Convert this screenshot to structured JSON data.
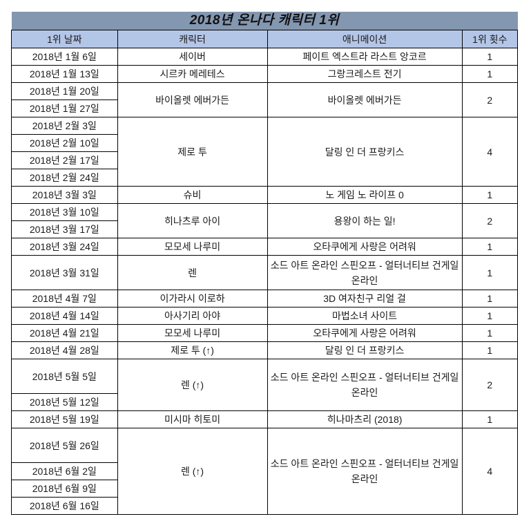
{
  "title": "2018년 온나다 캐릭터 1위",
  "headers": [
    "1위 날짜",
    "캐릭터",
    "애니메이션",
    "1위 횟수"
  ],
  "colors": {
    "title_bg": "#8497B0",
    "header_bg": "#B4C6E7"
  },
  "groups": [
    {
      "dates": [
        "2018년 1월 6일"
      ],
      "character": "세이버",
      "anime": "페이트 엑스트라 라스트 앙코르",
      "count": "1"
    },
    {
      "dates": [
        "2018년 1월 13일"
      ],
      "character": "시르카 메레테스",
      "anime": "그랑크레스트 전기",
      "count": "1"
    },
    {
      "dates": [
        "2018년 1월 20일",
        "2018년 1월 27일"
      ],
      "character": "바이올렛 에버가든",
      "anime": "바이올렛 에버가든",
      "count": "2"
    },
    {
      "dates": [
        "2018년 2월 3일",
        "2018년 2월 10일",
        "2018년 2월 17일",
        "2018년 2월 24일"
      ],
      "character": "제로 투",
      "anime": "달링 인 더 프랑키스",
      "count": "4"
    },
    {
      "dates": [
        "2018년 3월 3일"
      ],
      "character": "슈비",
      "anime": "노 게임 노 라이프 0",
      "count": "1"
    },
    {
      "dates": [
        "2018년 3월 10일",
        "2018년 3월 17일"
      ],
      "character": "히나츠루 아이",
      "anime": "용왕이 하는 일!",
      "count": "2"
    },
    {
      "dates": [
        "2018년 3월 24일"
      ],
      "character": "모모세 나루미",
      "anime": "오타쿠에게 사랑은 어려워",
      "count": "1"
    },
    {
      "dates": [
        "2018년 3월 31일"
      ],
      "character": "렌",
      "anime": "소드 아트 온라인 스핀오프 - 얼터너티브 건게일 온라인",
      "count": "1"
    },
    {
      "dates": [
        "2018년 4월 7일"
      ],
      "character": "이가라시 이로하",
      "anime": "3D 여자친구 리얼 걸",
      "count": "1"
    },
    {
      "dates": [
        "2018년 4월 14일"
      ],
      "character": "아사기리 아야",
      "anime": "마법소녀 사이트",
      "count": "1"
    },
    {
      "dates": [
        "2018년 4월 21일"
      ],
      "character": "모모세 나루미",
      "anime": "오타쿠에게 사랑은 어려워",
      "count": "1"
    },
    {
      "dates": [
        "2018년 4월 28일"
      ],
      "character": "제로 투 (↑)",
      "anime": "달링 인 더 프랑키스",
      "count": "1"
    },
    {
      "dates": [
        "2018년 5월 5일",
        "2018년 5월 12일"
      ],
      "character": "렌 (↑)",
      "anime": "소드 아트 온라인 스핀오프 - 얼터너티브 건게일 온라인",
      "count": "2"
    },
    {
      "dates": [
        "2018년 5월 19일"
      ],
      "character": "미시마 히토미",
      "anime": "히나마츠리 (2018)",
      "count": "1"
    },
    {
      "dates": [
        "2018년 5월 26일",
        "2018년 6월 2일",
        "2018년 6월 9일",
        "2018년 6월 16일"
      ],
      "character": "렌 (↑)",
      "anime": "소드 아트 온라인 스핀오프 - 얼터너티브 건게일 온라인",
      "count": "4"
    }
  ]
}
